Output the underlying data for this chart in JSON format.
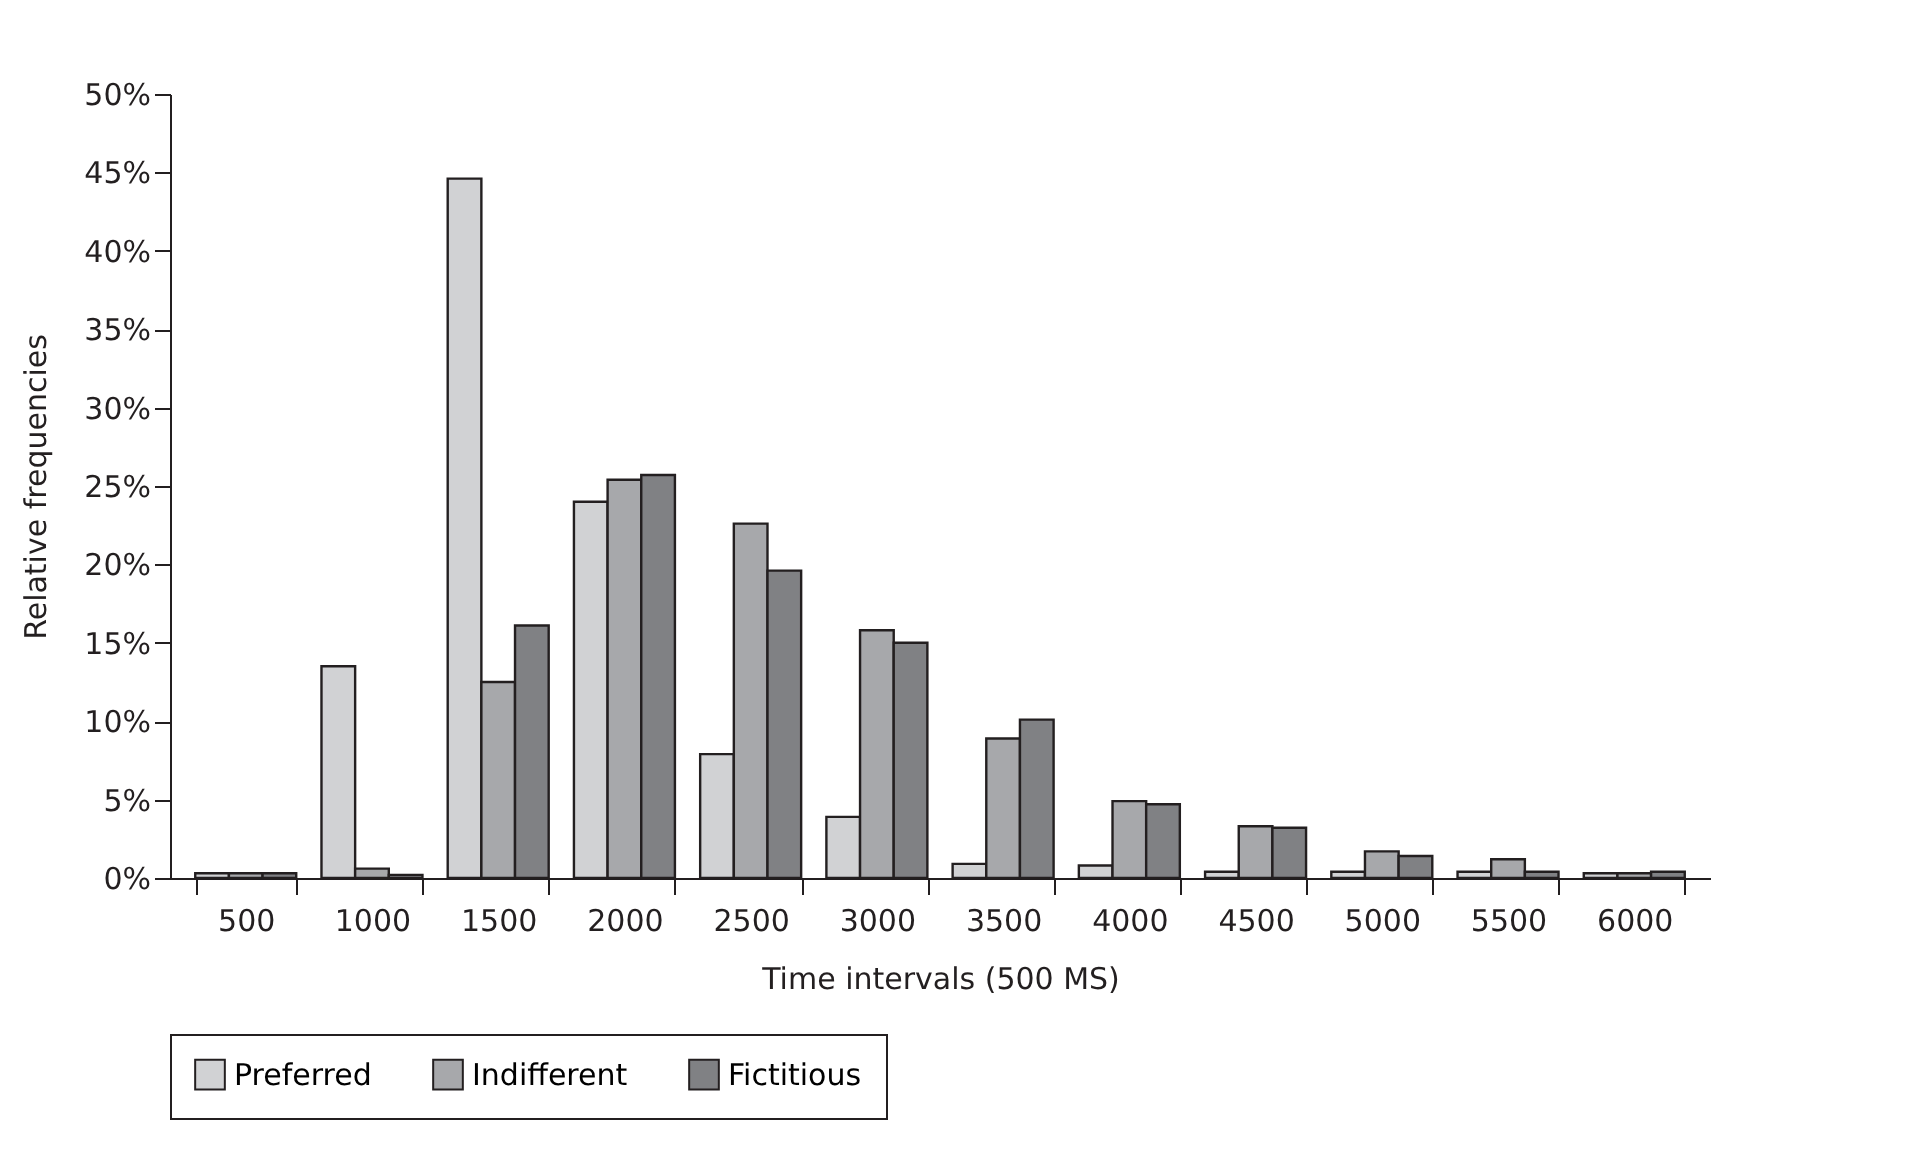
{
  "chart_data": {
    "type": "bar",
    "xlabel": "Time intervals (500 MS)",
    "ylabel": "Relative frequencies",
    "categories": [
      "500",
      "1000",
      "1500",
      "2000",
      "2500",
      "3000",
      "3500",
      "4000",
      "4500",
      "5000",
      "5500",
      "6000"
    ],
    "series": [
      {
        "name": "Preferred",
        "color": "#d1d2d4",
        "values": [
          0.3,
          13.5,
          44.6,
          24.0,
          7.9,
          3.9,
          0.9,
          0.8,
          0.4,
          0.4,
          0.4,
          0.3
        ]
      },
      {
        "name": "Indifferent",
        "color": "#a7a8ab",
        "values": [
          0.3,
          0.6,
          12.5,
          25.4,
          22.6,
          15.8,
          8.9,
          4.9,
          3.3,
          1.7,
          1.2,
          0.3
        ]
      },
      {
        "name": "Fictitious",
        "color": "#808184",
        "values": [
          0.3,
          0.2,
          16.1,
          25.7,
          19.6,
          15.0,
          10.1,
          4.7,
          3.2,
          1.4,
          0.4,
          0.4
        ]
      }
    ],
    "ylim": [
      0,
      50
    ],
    "yticks": [
      {
        "value": 0,
        "label": "0%"
      },
      {
        "value": 5,
        "label": "5%"
      },
      {
        "value": 10,
        "label": "10%"
      },
      {
        "value": 15,
        "label": "15%"
      },
      {
        "value": 20,
        "label": "20%"
      },
      {
        "value": 25,
        "label": "25%"
      },
      {
        "value": 30,
        "label": "30%"
      },
      {
        "value": 35,
        "label": "35%"
      },
      {
        "value": 40,
        "label": "40%"
      },
      {
        "value": 45,
        "label": "45%"
      },
      {
        "value": 50,
        "label": "50%"
      }
    ],
    "grid": false,
    "legend": "bottom"
  }
}
